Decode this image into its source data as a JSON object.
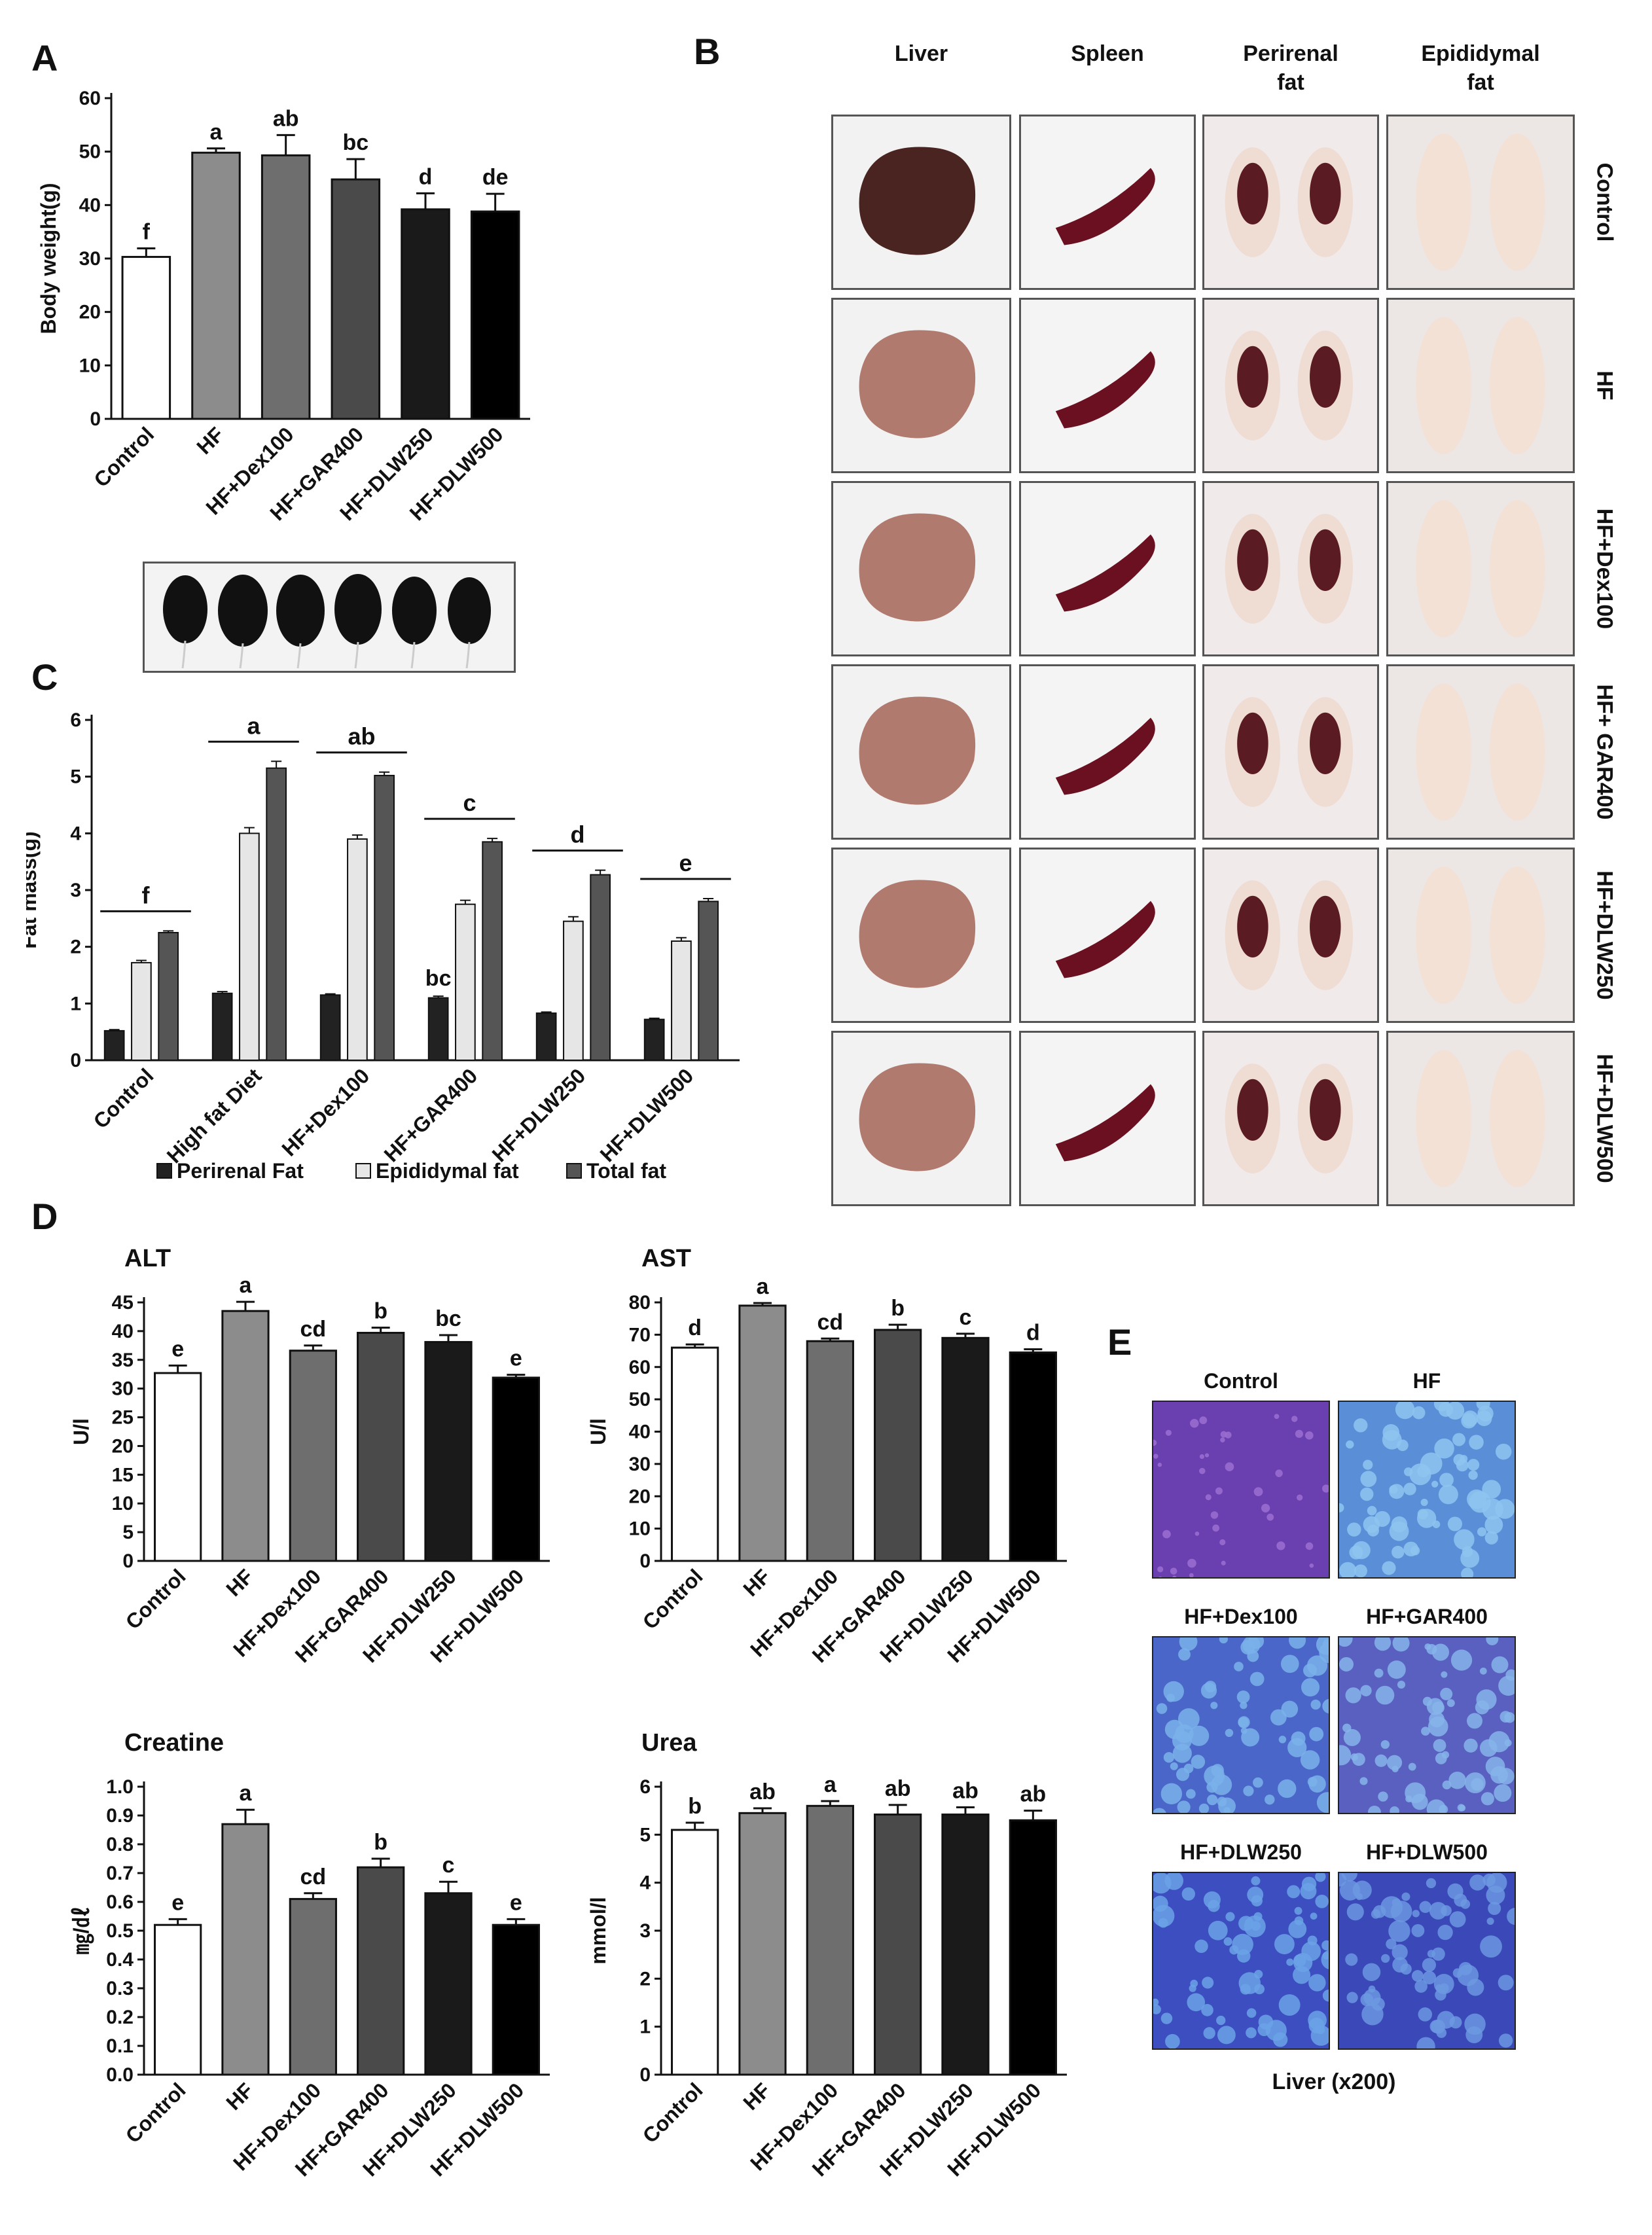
{
  "panel_labels": {
    "A": "A",
    "B": "B",
    "C": "C",
    "D": "D",
    "E": "E"
  },
  "colors": {
    "control": "#ffffff",
    "hf": "#8c8c8c",
    "dex": "#6e6e6e",
    "gar": "#4a4a4a",
    "dlw250": "#1a1a1a",
    "dlw500": "#000000",
    "perirenal": "#222222",
    "epididymal": "#e6e6e6",
    "total": "#555555"
  },
  "panelB": {
    "columns": [
      "Liver",
      "Spleen",
      "Perirenal\nfat",
      "Epididymal\nfat"
    ],
    "rows": [
      "Control",
      "HF",
      "HF+Dex100",
      "HF+ GAR400",
      "HF+DLW250",
      "HF+DLW500"
    ]
  },
  "panelE": {
    "labels": [
      "Control",
      "HF",
      "HF+Dex100",
      "HF+GAR400",
      "HF+DLW250",
      "HF+DLW500"
    ],
    "caption": "Liver (x200)"
  },
  "chart_data": [
    {
      "id": "A",
      "type": "bar",
      "title": "",
      "categories": [
        "Control",
        "HF",
        "HF+Dex100",
        "HF+GAR400",
        "HF+DLW250",
        "HF+DLW500"
      ],
      "values": [
        30.3,
        49.8,
        49.3,
        44.8,
        39.2,
        38.8
      ],
      "errors": [
        1.6,
        0.8,
        3.8,
        3.8,
        3.0,
        3.3
      ],
      "letters": [
        "f",
        "a",
        "ab",
        "bc",
        "d",
        "de"
      ],
      "ylabel": "Body weight(g)",
      "ylim": [
        0,
        60
      ],
      "yticks": [
        0,
        10,
        20,
        30,
        40,
        50,
        60
      ],
      "yprec": 0
    },
    {
      "id": "C",
      "type": "bar",
      "title": "",
      "categories": [
        "Control",
        "High fat Diet",
        "HF+Dex100",
        "HF+GAR400",
        "HF+DLW250",
        "HF+DLW500"
      ],
      "series": [
        {
          "name": "Perirenal Fat",
          "values": [
            0.52,
            1.18,
            1.15,
            1.1,
            0.83,
            0.72
          ],
          "errors": [
            0.02,
            0.03,
            0.02,
            0.03,
            0.02,
            0.02
          ]
        },
        {
          "name": "Epididymal fat",
          "values": [
            1.72,
            4.0,
            3.9,
            2.75,
            2.45,
            2.1
          ],
          "errors": [
            0.04,
            0.1,
            0.07,
            0.07,
            0.08,
            0.06
          ]
        },
        {
          "name": "Total fat",
          "values": [
            2.25,
            5.15,
            5.02,
            3.85,
            3.27,
            2.8
          ],
          "errors": [
            0.03,
            0.12,
            0.06,
            0.06,
            0.08,
            0.05
          ]
        }
      ],
      "letters": [
        "f",
        "a",
        "ab",
        "c",
        "d",
        "e"
      ],
      "extra_letters": [
        {
          "text": "bc",
          "category": 3
        }
      ],
      "ylabel": "Fat mass(g)",
      "ylim": [
        0,
        6
      ],
      "yticks": [
        0,
        1,
        2,
        3,
        4,
        5,
        6
      ],
      "yprec": 0
    },
    {
      "id": "ALT",
      "type": "bar",
      "title": "ALT",
      "categories": [
        "Control",
        "HF",
        "HF+Dex100",
        "HF+GAR400",
        "HF+DLW250",
        "HF+DLW500"
      ],
      "values": [
        32.7,
        43.5,
        36.6,
        39.7,
        38.1,
        31.9
      ],
      "errors": [
        1.3,
        1.6,
        0.9,
        0.9,
        1.2,
        0.5
      ],
      "letters": [
        "e",
        "a",
        "cd",
        "b",
        "bc",
        "e"
      ],
      "ylabel": "U/l",
      "ylim": [
        0,
        45
      ],
      "yticks": [
        0,
        5,
        10,
        15,
        20,
        25,
        30,
        35,
        40,
        45
      ],
      "yprec": 0
    },
    {
      "id": "AST",
      "type": "bar",
      "title": "AST",
      "categories": [
        "Control",
        "HF",
        "HF+Dex100",
        "HF+GAR400",
        "HF+DLW250",
        "HF+DLW500"
      ],
      "values": [
        66.0,
        79.0,
        68.0,
        71.5,
        69.0,
        64.5
      ],
      "errors": [
        1.0,
        0.8,
        0.8,
        1.6,
        1.3,
        1.0
      ],
      "letters": [
        "d",
        "a",
        "cd",
        "b",
        "c",
        "d"
      ],
      "ylabel": "U/l",
      "ylim": [
        0,
        80
      ],
      "yticks": [
        0,
        10,
        20,
        30,
        40,
        50,
        60,
        70,
        80
      ],
      "yprec": 0
    },
    {
      "id": "Creatine",
      "type": "bar",
      "title": "Creatine",
      "categories": [
        "Control",
        "HF",
        "HF+Dex100",
        "HF+GAR400",
        "HF+DLW250",
        "HF+DLW500"
      ],
      "values": [
        0.52,
        0.87,
        0.61,
        0.72,
        0.63,
        0.52
      ],
      "errors": [
        0.02,
        0.05,
        0.02,
        0.03,
        0.04,
        0.02
      ],
      "letters": [
        "e",
        "a",
        "cd",
        "b",
        "c",
        "e"
      ],
      "ylabel": "㎎/㎗",
      "ylim": [
        0,
        1
      ],
      "yticks": [
        0,
        0.1,
        0.2,
        0.3,
        0.4,
        0.5,
        0.6,
        0.7,
        0.8,
        0.9,
        1
      ],
      "yprec": 1
    },
    {
      "id": "Urea",
      "type": "bar",
      "title": "Urea",
      "categories": [
        "Control",
        "HF",
        "HF+Dex100",
        "HF+GAR400",
        "HF+DLW250",
        "HF+DLW500"
      ],
      "values": [
        5.1,
        5.45,
        5.6,
        5.42,
        5.42,
        5.3
      ],
      "errors": [
        0.15,
        0.1,
        0.1,
        0.2,
        0.15,
        0.2
      ],
      "letters": [
        "b",
        "ab",
        "a",
        "ab",
        "ab",
        "ab"
      ],
      "ylabel": "mmol/l",
      "ylim": [
        0,
        6
      ],
      "yticks": [
        0,
        1,
        2,
        3,
        4,
        5,
        6
      ],
      "yprec": 0
    }
  ]
}
